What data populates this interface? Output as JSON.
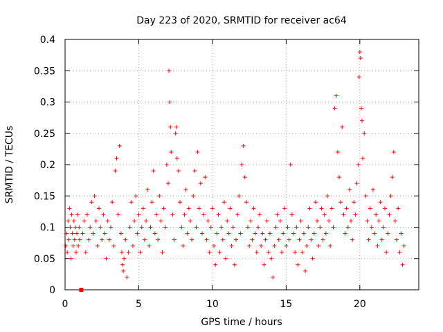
{
  "chart_data": {
    "type": "scatter",
    "title": "Day 223 of 2020, SRMTID for receiver ac64",
    "xlabel": "GPS time / hours",
    "ylabel": "SRMTID / TECUs",
    "xlim": [
      0,
      24
    ],
    "ylim": [
      0,
      0.4
    ],
    "xticks": [
      0,
      5,
      10,
      15,
      20
    ],
    "xtick_labels": [
      "0",
      "5",
      "10",
      "15",
      "20"
    ],
    "yticks": [
      0,
      0.05,
      0.1,
      0.15,
      0.2,
      0.25,
      0.3,
      0.35,
      0.4
    ],
    "ytick_labels": [
      "0",
      "0.05",
      "0.1",
      "0.15",
      "0.2",
      "0.25",
      "0.3",
      "0.35",
      "0.4"
    ],
    "grid": true,
    "marker": "plus",
    "color": "#ff0000",
    "series": [
      {
        "name": "SRMTID",
        "points": [
          [
            0.05,
            0.07
          ],
          [
            0.1,
            0.09
          ],
          [
            0.15,
            0.06
          ],
          [
            0.2,
            0.11
          ],
          [
            0.25,
            0.08
          ],
          [
            0.3,
            0.13
          ],
          [
            0.35,
            0.1
          ],
          [
            0.4,
            0.05
          ],
          [
            0.45,
            0.12
          ],
          [
            0.5,
            0.09
          ],
          [
            0.55,
            0.07
          ],
          [
            0.6,
            0.11
          ],
          [
            0.65,
            0.08
          ],
          [
            0.7,
            0.1
          ],
          [
            0.75,
            0.06
          ],
          [
            0.8,
            0.09
          ],
          [
            0.85,
            0.12
          ],
          [
            0.9,
            0.07
          ],
          [
            0.95,
            0.1
          ],
          [
            1.0,
            0.08
          ],
          [
            1.2,
            0.09
          ],
          [
            1.3,
            0.11
          ],
          [
            1.4,
            0.06
          ],
          [
            1.5,
            0.12
          ],
          [
            1.6,
            0.08
          ],
          [
            1.7,
            0.1
          ],
          [
            1.8,
            0.14
          ],
          [
            1.9,
            0.09
          ],
          [
            2.0,
            0.15
          ],
          [
            2.1,
            0.11
          ],
          [
            2.2,
            0.07
          ],
          [
            2.3,
            0.13
          ],
          [
            2.4,
            0.1
          ],
          [
            2.5,
            0.08
          ],
          [
            2.6,
            0.12
          ],
          [
            2.7,
            0.09
          ],
          [
            2.8,
            0.05
          ],
          [
            2.9,
            0.11
          ],
          [
            3.0,
            0.08
          ],
          [
            3.1,
            0.1
          ],
          [
            3.2,
            0.14
          ],
          [
            3.3,
            0.07
          ],
          [
            3.4,
            0.19
          ],
          [
            3.5,
            0.21
          ],
          [
            3.6,
            0.12
          ],
          [
            3.7,
            0.23
          ],
          [
            3.8,
            0.09
          ],
          [
            3.85,
            0.06
          ],
          [
            3.9,
            0.04
          ],
          [
            3.95,
            0.03
          ],
          [
            4.0,
            0.05
          ],
          [
            4.1,
            0.08
          ],
          [
            4.2,
            0.02
          ],
          [
            4.3,
            0.06
          ],
          [
            4.4,
            0.1
          ],
          [
            4.5,
            0.14
          ],
          [
            4.6,
            0.07
          ],
          [
            4.7,
            0.11
          ],
          [
            4.8,
            0.15
          ],
          [
            4.9,
            0.09
          ],
          [
            5.0,
            0.12
          ],
          [
            5.1,
            0.06
          ],
          [
            5.2,
            0.1
          ],
          [
            5.3,
            0.13
          ],
          [
            5.4,
            0.08
          ],
          [
            5.5,
            0.11
          ],
          [
            5.6,
            0.16
          ],
          [
            5.7,
            0.07
          ],
          [
            5.8,
            0.1
          ],
          [
            5.9,
            0.14
          ],
          [
            6.0,
            0.19
          ],
          [
            6.1,
            0.09
          ],
          [
            6.2,
            0.12
          ],
          [
            6.3,
            0.08
          ],
          [
            6.4,
            0.15
          ],
          [
            6.5,
            0.11
          ],
          [
            6.6,
            0.06
          ],
          [
            6.7,
            0.13
          ],
          [
            6.8,
            0.1
          ],
          [
            6.9,
            0.2
          ],
          [
            7.0,
            0.17
          ],
          [
            7.05,
            0.35
          ],
          [
            7.1,
            0.3
          ],
          [
            7.15,
            0.26
          ],
          [
            7.2,
            0.22
          ],
          [
            7.3,
            0.12
          ],
          [
            7.4,
            0.08
          ],
          [
            7.5,
            0.25
          ],
          [
            7.55,
            0.26
          ],
          [
            7.6,
            0.21
          ],
          [
            7.7,
            0.19
          ],
          [
            7.8,
            0.14
          ],
          [
            7.9,
            0.1
          ],
          [
            8.0,
            0.07
          ],
          [
            8.1,
            0.12
          ],
          [
            8.2,
            0.16
          ],
          [
            8.3,
            0.09
          ],
          [
            8.4,
            0.13
          ],
          [
            8.5,
            0.11
          ],
          [
            8.6,
            0.08
          ],
          [
            8.7,
            0.15
          ],
          [
            8.8,
            0.19
          ],
          [
            8.9,
            0.1
          ],
          [
            9.0,
            0.22
          ],
          [
            9.1,
            0.13
          ],
          [
            9.2,
            0.17
          ],
          [
            9.3,
            0.09
          ],
          [
            9.4,
            0.12
          ],
          [
            9.5,
            0.18
          ],
          [
            9.6,
            0.08
          ],
          [
            9.7,
            0.11
          ],
          [
            9.8,
            0.06
          ],
          [
            9.9,
            0.1
          ],
          [
            10.0,
            0.13
          ],
          [
            10.1,
            0.07
          ],
          [
            10.2,
            0.04
          ],
          [
            10.3,
            0.09
          ],
          [
            10.4,
            0.12
          ],
          [
            10.5,
            0.06
          ],
          [
            10.6,
            0.1
          ],
          [
            10.7,
            0.08
          ],
          [
            10.8,
            0.14
          ],
          [
            10.9,
            0.05
          ],
          [
            11.0,
            0.11
          ],
          [
            11.1,
            0.09
          ],
          [
            11.2,
            0.13
          ],
          [
            11.3,
            0.07
          ],
          [
            11.4,
            0.1
          ],
          [
            11.5,
            0.04
          ],
          [
            11.6,
            0.08
          ],
          [
            11.7,
            0.12
          ],
          [
            11.8,
            0.15
          ],
          [
            11.9,
            0.09
          ],
          [
            12.0,
            0.2
          ],
          [
            12.1,
            0.23
          ],
          [
            12.2,
            0.18
          ],
          [
            12.3,
            0.14
          ],
          [
            12.4,
            0.1
          ],
          [
            12.5,
            0.07
          ],
          [
            12.6,
            0.11
          ],
          [
            12.7,
            0.08
          ],
          [
            12.8,
            0.13
          ],
          [
            12.9,
            0.09
          ],
          [
            13.0,
            0.06
          ],
          [
            13.1,
            0.1
          ],
          [
            13.2,
            0.12
          ],
          [
            13.3,
            0.07
          ],
          [
            13.4,
            0.09
          ],
          [
            13.5,
            0.04
          ],
          [
            13.6,
            0.08
          ],
          [
            13.7,
            0.11
          ],
          [
            13.8,
            0.06
          ],
          [
            13.9,
            0.09
          ],
          [
            14.0,
            0.05
          ],
          [
            14.1,
            0.02
          ],
          [
            14.2,
            0.07
          ],
          [
            14.3,
            0.1
          ],
          [
            14.4,
            0.12
          ],
          [
            14.5,
            0.08
          ],
          [
            14.6,
            0.11
          ],
          [
            14.7,
            0.06
          ],
          [
            14.8,
            0.09
          ],
          [
            14.9,
            0.13
          ],
          [
            15.0,
            0.07
          ],
          [
            15.1,
            0.1
          ],
          [
            15.2,
            0.08
          ],
          [
            15.3,
            0.2
          ],
          [
            15.4,
            0.12
          ],
          [
            15.5,
            0.09
          ],
          [
            15.6,
            0.06
          ],
          [
            15.7,
            0.1
          ],
          [
            15.8,
            0.04
          ],
          [
            15.9,
            0.08
          ],
          [
            16.0,
            0.11
          ],
          [
            16.1,
            0.06
          ],
          [
            16.2,
            0.09
          ],
          [
            16.3,
            0.03
          ],
          [
            16.4,
            0.07
          ],
          [
            16.5,
            0.1
          ],
          [
            16.6,
            0.13
          ],
          [
            16.7,
            0.08
          ],
          [
            16.8,
            0.05
          ],
          [
            16.9,
            0.09
          ],
          [
            17.0,
            0.14
          ],
          [
            17.1,
            0.11
          ],
          [
            17.2,
            0.07
          ],
          [
            17.3,
            0.1
          ],
          [
            17.4,
            0.13
          ],
          [
            17.5,
            0.08
          ],
          [
            17.6,
            0.12
          ],
          [
            17.7,
            0.09
          ],
          [
            17.8,
            0.15
          ],
          [
            17.9,
            0.11
          ],
          [
            18.0,
            0.07
          ],
          [
            18.1,
            0.13
          ],
          [
            18.2,
            0.1
          ],
          [
            18.3,
            0.29
          ],
          [
            18.4,
            0.31
          ],
          [
            18.5,
            0.22
          ],
          [
            18.6,
            0.18
          ],
          [
            18.7,
            0.14
          ],
          [
            18.8,
            0.26
          ],
          [
            18.9,
            0.12
          ],
          [
            19.0,
            0.09
          ],
          [
            19.1,
            0.13
          ],
          [
            19.2,
            0.1
          ],
          [
            19.3,
            0.16
          ],
          [
            19.4,
            0.11
          ],
          [
            19.5,
            0.08
          ],
          [
            19.6,
            0.14
          ],
          [
            19.7,
            0.12
          ],
          [
            19.8,
            0.17
          ],
          [
            19.9,
            0.2
          ],
          [
            19.95,
            0.34
          ],
          [
            20.0,
            0.38
          ],
          [
            20.05,
            0.37
          ],
          [
            20.1,
            0.29
          ],
          [
            20.15,
            0.27
          ],
          [
            20.2,
            0.21
          ],
          [
            20.3,
            0.25
          ],
          [
            20.4,
            0.15
          ],
          [
            20.5,
            0.11
          ],
          [
            20.6,
            0.08
          ],
          [
            20.7,
            0.13
          ],
          [
            20.8,
            0.1
          ],
          [
            20.9,
            0.16
          ],
          [
            21.0,
            0.09
          ],
          [
            21.1,
            0.12
          ],
          [
            21.2,
            0.07
          ],
          [
            21.3,
            0.11
          ],
          [
            21.4,
            0.14
          ],
          [
            21.5,
            0.08
          ],
          [
            21.6,
            0.1
          ],
          [
            21.7,
            0.13
          ],
          [
            21.8,
            0.06
          ],
          [
            21.9,
            0.09
          ],
          [
            22.0,
            0.12
          ],
          [
            22.1,
            0.15
          ],
          [
            22.2,
            0.18
          ],
          [
            22.3,
            0.22
          ],
          [
            22.4,
            0.11
          ],
          [
            22.5,
            0.08
          ],
          [
            22.6,
            0.13
          ],
          [
            22.7,
            0.06
          ],
          [
            22.8,
            0.09
          ],
          [
            22.9,
            0.04
          ],
          [
            23.0,
            0.07
          ]
        ]
      }
    ],
    "extra_marker": {
      "x": 1.1,
      "y": 0.0
    }
  }
}
